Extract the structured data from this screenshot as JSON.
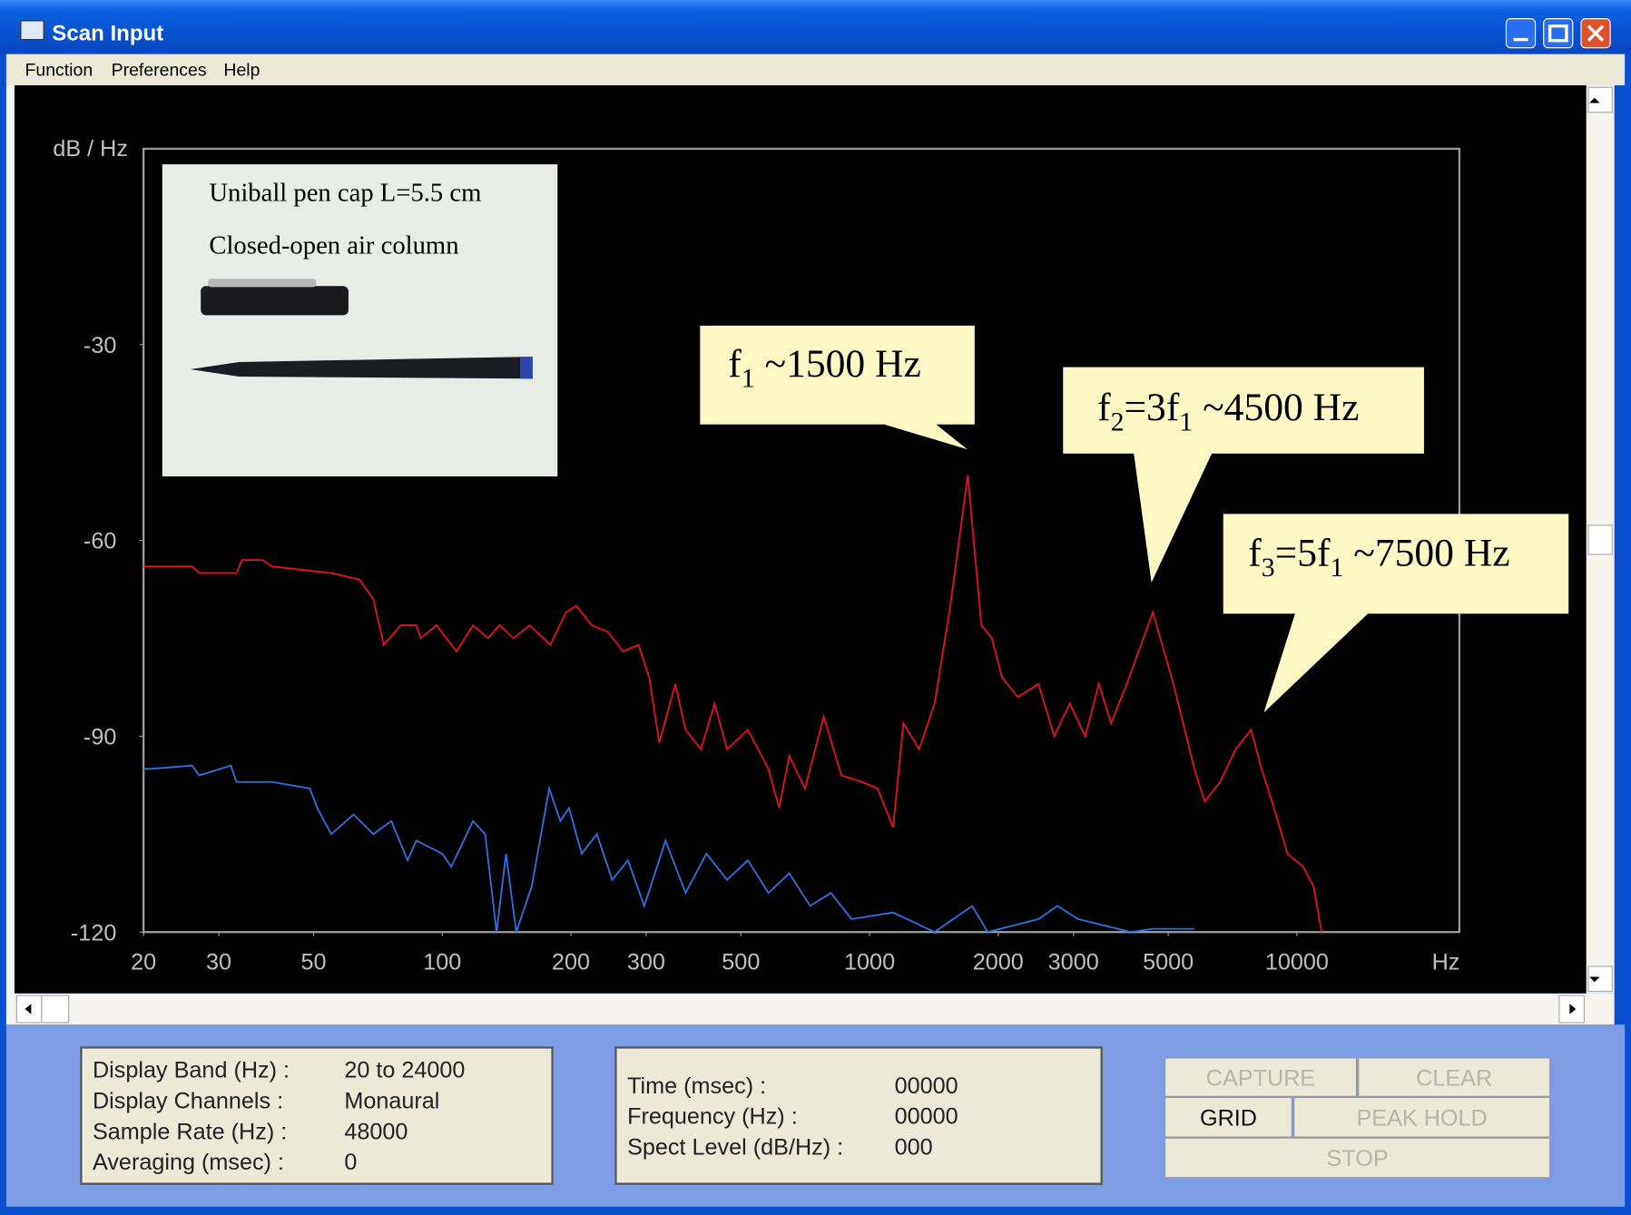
{
  "window": {
    "title": "Scan Input"
  },
  "menu": [
    "Function",
    "Preferences",
    "Help"
  ],
  "chart_data": {
    "type": "line",
    "y_label": "dB / Hz",
    "x_label": "Hz",
    "log_x": true,
    "xlim": [
      20,
      24000
    ],
    "ylim": [
      -120,
      0
    ],
    "xticks": [
      20,
      30,
      50,
      100,
      200,
      300,
      500,
      1000,
      2000,
      3000,
      5000,
      10000
    ],
    "yticks": [
      -120,
      -90,
      -60,
      -30
    ],
    "series": [
      {
        "color": "#e0141e",
        "x": [
          20,
          26,
          27,
          33,
          34,
          38,
          40,
          55,
          64,
          69,
          73,
          80,
          87,
          89,
          97,
          108,
          118,
          128,
          136,
          147,
          160,
          179,
          195,
          206,
          224,
          244,
          265,
          288,
          305,
          322,
          351,
          371,
          403,
          434,
          464,
          519,
          580,
          614,
          649,
          706,
          781,
          859,
          960,
          1044,
          1135,
          1200,
          1306,
          1420,
          1545,
          1698,
          1827,
          1932,
          2043,
          2223,
          2485,
          2704,
          2940,
          3197,
          3439,
          3675,
          3998,
          4600,
          5142,
          5754,
          6085,
          6613,
          7190,
          7816,
          8265,
          8744,
          9509,
          10350,
          10940,
          11430
        ],
        "values": [
          -64,
          -64,
          -65,
          -65,
          -63,
          -63,
          -64,
          -65,
          -66,
          -69,
          -76,
          -73,
          -73,
          -75,
          -73,
          -77,
          -73,
          -75,
          -73,
          -75,
          -73,
          -76,
          -71,
          -70,
          -73,
          -74,
          -77,
          -76,
          -81,
          -91,
          -82,
          -89,
          -92,
          -85,
          -92,
          -89,
          -95,
          -101,
          -93,
          -98,
          -87,
          -96,
          -97,
          -98,
          -104,
          -88,
          -92,
          -85,
          -70,
          -50,
          -73,
          -75,
          -81,
          -84,
          -82,
          -90,
          -85,
          -90,
          -82,
          -88,
          -82,
          -71,
          -82,
          -95,
          -100,
          -97,
          -92,
          -89,
          -95,
          -100,
          -108,
          -110,
          -113,
          -120
        ]
      },
      {
        "color": "#2f6fe0",
        "x": [
          20,
          20.8,
          26,
          27,
          32,
          33,
          40,
          49,
          51,
          55,
          62,
          69,
          76,
          83,
          87,
          100,
          105,
          118,
          126,
          134,
          141,
          149,
          162,
          178,
          189,
          198,
          212,
          230,
          250,
          272,
          297,
          333,
          371,
          415,
          464,
          519,
          580,
          649,
          726,
          812,
          907,
          1135,
          1420,
          1738,
          1890,
          2485,
          2750,
          3075,
          4080,
          4600,
          5750
        ],
        "values": [
          -95,
          -95,
          -94.5,
          -96,
          -94.5,
          -97,
          -97,
          -98,
          -101,
          -105,
          -102,
          -105,
          -103,
          -109,
          -106,
          -108,
          -110,
          -103,
          -105,
          -120,
          -108,
          -120,
          -113,
          -98,
          -103,
          -101,
          -108,
          -105,
          -112,
          -109,
          -116,
          -106,
          -114,
          -108,
          -112,
          -109,
          -114,
          -111,
          -116,
          -114,
          -118,
          -117,
          -120,
          -116,
          -120,
          -118,
          -116,
          -118,
          -120,
          -119.5,
          -119.5
        ]
      }
    ],
    "inset": {
      "lines": [
        "Uniball pen cap L=5.5 cm",
        "Closed-open air column"
      ]
    },
    "annotations": [
      {
        "parts": [
          "f",
          "1",
          " ~1500 Hz"
        ]
      },
      {
        "parts": [
          "f",
          "2",
          "=3f",
          "1",
          " ~4500 Hz"
        ]
      },
      {
        "parts": [
          "f",
          "3",
          "=5f",
          "1",
          " ~7500 Hz"
        ]
      }
    ]
  },
  "info_panel": {
    "rows": [
      [
        "Display Band (Hz) :",
        "20 to 24000"
      ],
      [
        "Display Channels :",
        "Monaural"
      ],
      [
        "Sample Rate (Hz) :",
        "48000"
      ],
      [
        "Averaging (msec) :",
        "0"
      ]
    ]
  },
  "status_panel": {
    "rows": [
      [
        "Time (msec) :",
        "00000"
      ],
      [
        "Frequency (Hz) :",
        "00000"
      ],
      [
        "Spect Level (dB/Hz) :",
        "000"
      ]
    ]
  },
  "buttons": [
    {
      "label": "CAPTURE",
      "enabled": false
    },
    {
      "label": "CLEAR",
      "enabled": false
    },
    {
      "label": "GRID",
      "enabled": true
    },
    {
      "label": "PEAK HOLD",
      "enabled": false
    },
    {
      "label": "STOP",
      "enabled": false
    }
  ]
}
